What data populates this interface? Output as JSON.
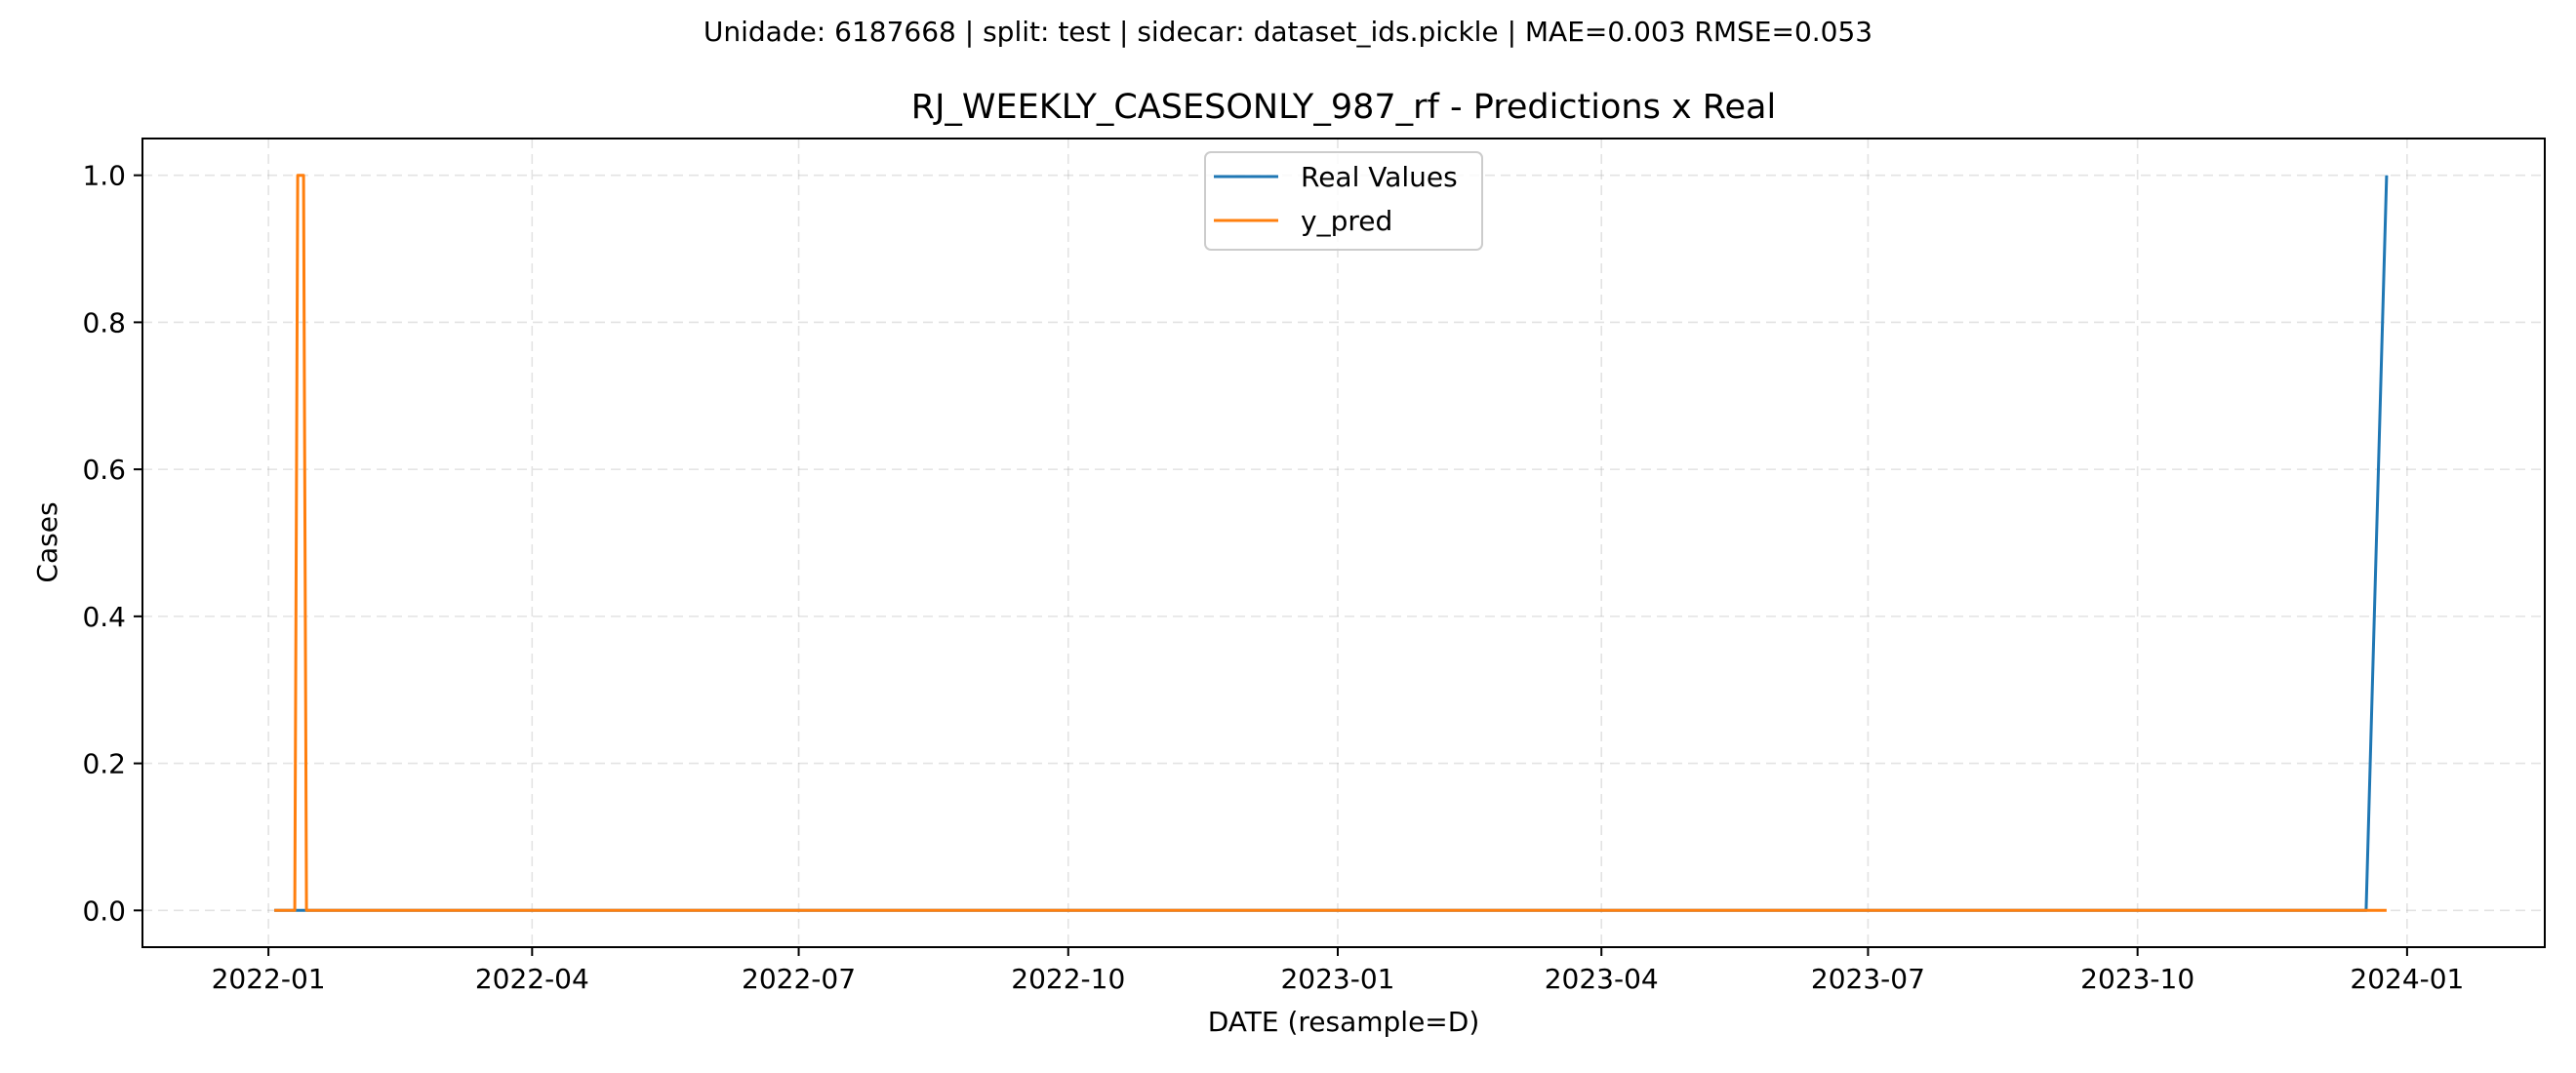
{
  "chart_data": {
    "type": "line",
    "suptitle": "Unidade: 6187668 | split: test | sidecar: dataset_ids.pickle | MAE=0.003  RMSE=0.053",
    "title": "RJ_WEEKLY_CASESONLY_987_rf - Predictions x Real",
    "xlabel": "DATE (resample=D)",
    "ylabel": "Cases",
    "xlim": [
      "2021-11-19",
      "2024-02-17"
    ],
    "ylim": [
      -0.05,
      1.05
    ],
    "x_ticks": [
      "2022-01",
      "2022-04",
      "2022-07",
      "2022-10",
      "2023-01",
      "2023-04",
      "2023-07",
      "2023-10",
      "2024-01"
    ],
    "y_ticks": [
      0.0,
      0.2,
      0.4,
      0.6,
      0.8,
      1.0
    ],
    "y_tick_labels": [
      "0.0",
      "0.2",
      "0.4",
      "0.6",
      "0.8",
      "1.0"
    ],
    "grid": true,
    "legend_position": "upper center",
    "series": [
      {
        "name": "Real Values",
        "color": "#1f77b4",
        "points": [
          {
            "x": "2022-01-03",
            "y": 0
          },
          {
            "x": "2023-12-18",
            "y": 0
          },
          {
            "x": "2023-12-25",
            "y": 1
          }
        ]
      },
      {
        "name": "y_pred",
        "color": "#ff7f0e",
        "points": [
          {
            "x": "2022-01-03",
            "y": 0
          },
          {
            "x": "2022-01-10",
            "y": 0
          },
          {
            "x": "2022-01-11",
            "y": 1
          },
          {
            "x": "2022-01-13",
            "y": 1
          },
          {
            "x": "2022-01-14",
            "y": 0
          },
          {
            "x": "2023-12-25",
            "y": 0
          }
        ]
      }
    ]
  }
}
